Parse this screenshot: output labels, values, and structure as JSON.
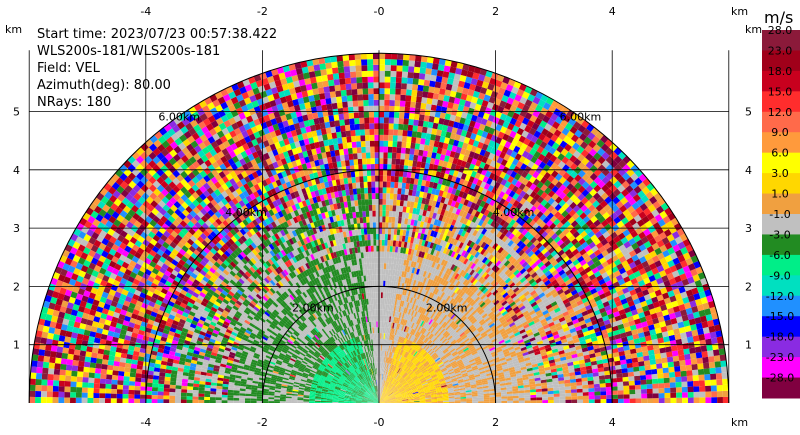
{
  "info": {
    "start_time": "Start time: 2023/07/23 00:57:38.422",
    "instrument": "WLS200s-181/WLS200s-181",
    "field": "Field: VEL",
    "azimuth": "Azimuth(deg): 80.00",
    "nrays": "NRays: 180"
  },
  "colorbar": {
    "unit": "m/s",
    "labels": [
      "28.0",
      "23.0",
      "18.0",
      "15.0",
      "12.0",
      "9.0",
      "6.0",
      "3.0",
      "1.0",
      "-1.0",
      "-3.0",
      "-6.0",
      "-9.0",
      "-12.0",
      "-15.0",
      "-18.0",
      "-23.0",
      "-28.0"
    ],
    "colors": [
      "#8b1a3a",
      "#a0001a",
      "#c8001e",
      "#ff2d2d",
      "#ff6a4a",
      "#ff9a3c",
      "#ffff00",
      "#ffd700",
      "#f0a040",
      "#c0c0c0",
      "#228b22",
      "#00ee88",
      "#00e0c0",
      "#2090ff",
      "#0000ff",
      "#8a2be2",
      "#ff00ff",
      "#800040"
    ]
  },
  "chart_data": {
    "type": "heatmap",
    "title": "",
    "xlabel": "km",
    "ylabel": "km",
    "xlim": [
      -6,
      6
    ],
    "ylim": [
      0,
      6
    ],
    "x_ticks": [
      "-4",
      "-2",
      "-0",
      "2",
      "4"
    ],
    "y_ticks": [
      "1",
      "2",
      "3",
      "4",
      "5"
    ],
    "range_rings_km": [
      2,
      4,
      6
    ],
    "ring_labels": [
      "2.00km",
      "4.00km",
      "6.00km"
    ],
    "grid": true,
    "field": "VEL",
    "units": "m/s",
    "vmin": -28.0,
    "vmax": 28.0
  }
}
